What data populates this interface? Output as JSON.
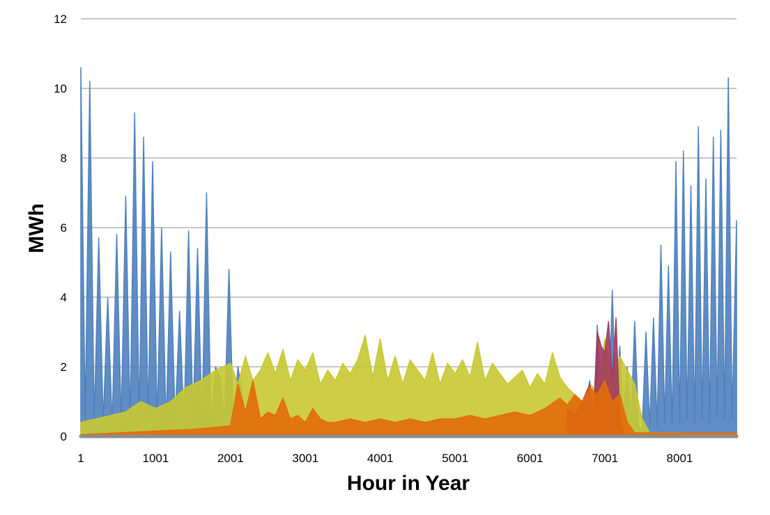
{
  "chart_data": {
    "type": "area",
    "title": "",
    "xlabel": "Hour in Year",
    "ylabel": "MWh",
    "xlim": [
      1,
      8760
    ],
    "ylim": [
      0,
      12
    ],
    "x_ticks": [
      1,
      1001,
      2001,
      3001,
      4001,
      5001,
      6001,
      7001,
      8001
    ],
    "x_tick_labels": [
      "1",
      "1001",
      "2001",
      "3001",
      "4001",
      "5001",
      "6001",
      "7001",
      "8001"
    ],
    "y_ticks": [
      0,
      2,
      4,
      6,
      8,
      10,
      12
    ],
    "y_tick_labels": [
      "0",
      "2",
      "4",
      "6",
      "8",
      "10",
      "12"
    ],
    "grid": "horizontal",
    "legend": "none",
    "series": [
      {
        "color": "#4f81bd",
        "x": [
          1,
          60,
          120,
          180,
          240,
          300,
          360,
          420,
          480,
          540,
          600,
          660,
          720,
          780,
          840,
          900,
          960,
          1020,
          1080,
          1140,
          1200,
          1260,
          1320,
          1380,
          1440,
          1500,
          1560,
          1620,
          1680,
          1740,
          1800,
          1860,
          1920,
          1980,
          2040,
          2100,
          2200,
          2300,
          2400,
          2600,
          2800,
          3000,
          3400,
          3800,
          4200,
          4600,
          5000,
          5400,
          5800,
          6200,
          6400,
          6500,
          6600,
          6700,
          6800,
          6850,
          6900,
          6950,
          7000,
          7050,
          7100,
          7150,
          7200,
          7250,
          7300,
          7350,
          7400,
          7450,
          7500,
          7550,
          7600,
          7650,
          7700,
          7750,
          7800,
          7850,
          7900,
          7950,
          8000,
          8050,
          8100,
          8150,
          8200,
          8250,
          8300,
          8350,
          8400,
          8450,
          8500,
          8550,
          8600,
          8650,
          8700,
          8760
        ],
        "values": [
          10.6,
          0.5,
          10.2,
          0.4,
          5.7,
          0.4,
          4.0,
          0.3,
          5.8,
          0.4,
          6.9,
          0.4,
          9.3,
          0.5,
          8.6,
          0.5,
          7.9,
          0.4,
          6.0,
          0.3,
          5.3,
          0.4,
          3.6,
          0.3,
          5.9,
          0.4,
          5.4,
          0.3,
          7.0,
          0.3,
          2.0,
          1.7,
          0.5,
          4.8,
          0.3,
          2.0,
          0.6,
          0.4,
          0.3,
          0.3,
          0.3,
          0.3,
          0.3,
          0.3,
          0.3,
          0.3,
          0.3,
          0.3,
          0.3,
          0.3,
          0.4,
          0.5,
          1.2,
          0.4,
          1.6,
          0.5,
          3.2,
          0.6,
          2.3,
          0.4,
          4.2,
          0.5,
          2.6,
          0.6,
          2.0,
          0.4,
          3.3,
          0.3,
          0.2,
          3.0,
          0.3,
          3.4,
          0.3,
          5.5,
          0.4,
          4.9,
          0.3,
          7.9,
          0.4,
          8.2,
          0.5,
          7.2,
          0.4,
          8.9,
          0.5,
          7.4,
          0.4,
          8.6,
          0.5,
          8.8,
          0.5,
          10.3,
          0.5,
          6.2
        ]
      },
      {
        "color": "#c8c832",
        "x": [
          1,
          200,
          400,
          600,
          800,
          1000,
          1200,
          1400,
          1600,
          1800,
          2000,
          2100,
          2200,
          2300,
          2400,
          2500,
          2600,
          2700,
          2800,
          2900,
          3000,
          3100,
          3200,
          3300,
          3400,
          3500,
          3600,
          3700,
          3800,
          3900,
          4000,
          4100,
          4200,
          4300,
          4400,
          4500,
          4600,
          4700,
          4800,
          4900,
          5000,
          5100,
          5200,
          5300,
          5400,
          5500,
          5600,
          5700,
          5800,
          5900,
          6000,
          6100,
          6200,
          6300,
          6400,
          6500,
          6600,
          6700,
          6800,
          6900,
          7000,
          7100,
          7200,
          7300,
          7400,
          7500,
          7600,
          8000,
          8760
        ],
        "values": [
          0.4,
          0.5,
          0.6,
          0.7,
          1.0,
          0.8,
          1.0,
          1.4,
          1.6,
          1.9,
          2.1,
          1.5,
          2.3,
          1.6,
          1.9,
          2.4,
          1.8,
          2.5,
          1.6,
          2.2,
          1.9,
          2.4,
          1.5,
          1.9,
          1.6,
          2.1,
          1.8,
          2.2,
          2.9,
          1.7,
          2.8,
          1.6,
          2.3,
          1.5,
          2.2,
          1.9,
          1.6,
          2.4,
          1.5,
          2.1,
          1.8,
          2.2,
          1.7,
          2.7,
          1.6,
          2.1,
          1.8,
          1.5,
          1.7,
          1.9,
          1.4,
          1.8,
          1.5,
          2.4,
          1.7,
          1.4,
          1.2,
          1.0,
          1.5,
          1.3,
          2.8,
          1.6,
          2.3,
          1.9,
          1.5,
          0.5,
          0.1,
          0.1,
          0.05
        ]
      },
      {
        "color": "#a23b5e",
        "x": [
          6500,
          6600,
          6700,
          6800,
          6850,
          6900,
          6950,
          7000,
          7050,
          7100,
          7150,
          7200,
          7250
        ],
        "values": [
          0.8,
          0.6,
          1.0,
          1.5,
          0.6,
          3.0,
          2.6,
          2.4,
          3.3,
          1.6,
          3.4,
          0.5,
          0.1
        ]
      },
      {
        "color": "#e36c0a",
        "x": [
          1,
          500,
          1000,
          1500,
          2000,
          2100,
          2200,
          2300,
          2400,
          2500,
          2600,
          2700,
          2800,
          2900,
          3000,
          3100,
          3200,
          3300,
          3400,
          3600,
          3800,
          4000,
          4200,
          4400,
          4600,
          4800,
          5000,
          5200,
          5400,
          5600,
          5800,
          6000,
          6200,
          6400,
          6500,
          6600,
          6700,
          6800,
          6900,
          7000,
          7100,
          7200,
          7300,
          7400,
          8000,
          8760
        ],
        "values": [
          0.05,
          0.1,
          0.15,
          0.2,
          0.3,
          1.5,
          0.7,
          1.6,
          0.5,
          0.7,
          0.6,
          1.1,
          0.5,
          0.6,
          0.4,
          0.8,
          0.5,
          0.4,
          0.4,
          0.5,
          0.4,
          0.5,
          0.4,
          0.5,
          0.4,
          0.5,
          0.5,
          0.6,
          0.5,
          0.6,
          0.7,
          0.6,
          0.8,
          1.1,
          0.9,
          1.2,
          1.0,
          1.4,
          1.2,
          1.6,
          1.0,
          1.2,
          0.4,
          0.1,
          0.1,
          0.1
        ]
      },
      {
        "color": "#8c8c8c",
        "x": [
          1,
          8760
        ],
        "values": [
          0.0,
          0.0
        ]
      }
    ]
  }
}
